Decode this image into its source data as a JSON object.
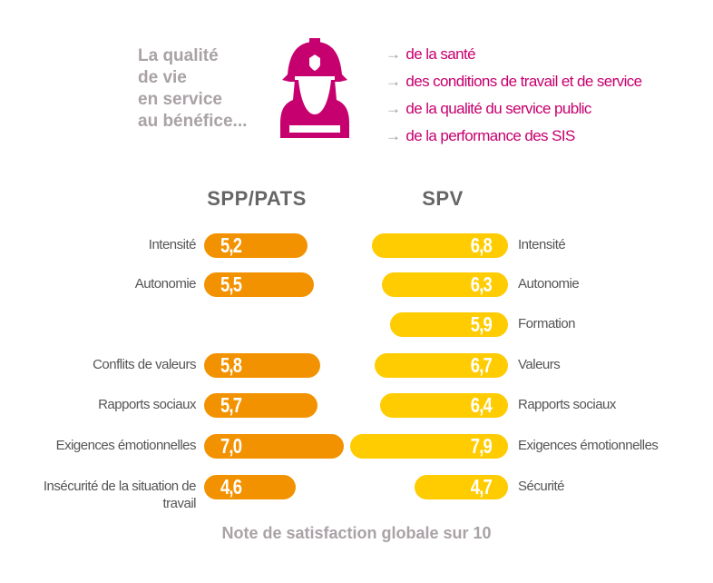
{
  "intro": {
    "lines": [
      "La qualité",
      "de vie",
      "en service",
      "au bénéfice..."
    ]
  },
  "benefits": {
    "arrow": "→",
    "items": [
      "de la santé",
      "des conditions de travail et de service",
      "de la qualité du service public",
      "de la performance des SIS"
    ]
  },
  "colors": {
    "magenta": "#c6006e",
    "orange": "#f39200",
    "yellow": "#fecc00",
    "grey": "#a9a2a6"
  },
  "icon": "firefighter-icon",
  "chart_data": {
    "type": "bar",
    "orientation": "horizontal",
    "xlabel": "Note de satisfaction globale sur 10",
    "series": [
      {
        "name": "SPP/PATS",
        "color": "#f39200",
        "categories": [
          "Intensité",
          "Autonomie",
          "Conflits de valeurs",
          "Rapports sociaux",
          "Exigences émotionnelles",
          "Insécurité de la situation de travail"
        ],
        "values": [
          5.2,
          5.5,
          5.8,
          5.7,
          7.0,
          4.6
        ],
        "labels": [
          "5,2",
          "5,5",
          "5,8",
          "5,7",
          "7,0",
          "4,6"
        ],
        "rows": [
          0,
          1,
          3,
          4,
          5,
          6
        ]
      },
      {
        "name": "SPV",
        "color": "#fecc00",
        "categories": [
          "Intensité",
          "Autonomie",
          "Formation",
          "Valeurs",
          "Rapports sociaux",
          "Exigences émotionnelles",
          "Sécurité"
        ],
        "values": [
          6.8,
          6.3,
          5.9,
          6.7,
          6.4,
          7.9,
          4.7
        ],
        "labels": [
          "6,8",
          "6,3",
          "5,9",
          "6,7",
          "6,4",
          "7,9",
          "4,7"
        ],
        "rows": [
          0,
          1,
          2,
          3,
          4,
          5,
          6
        ]
      }
    ]
  }
}
